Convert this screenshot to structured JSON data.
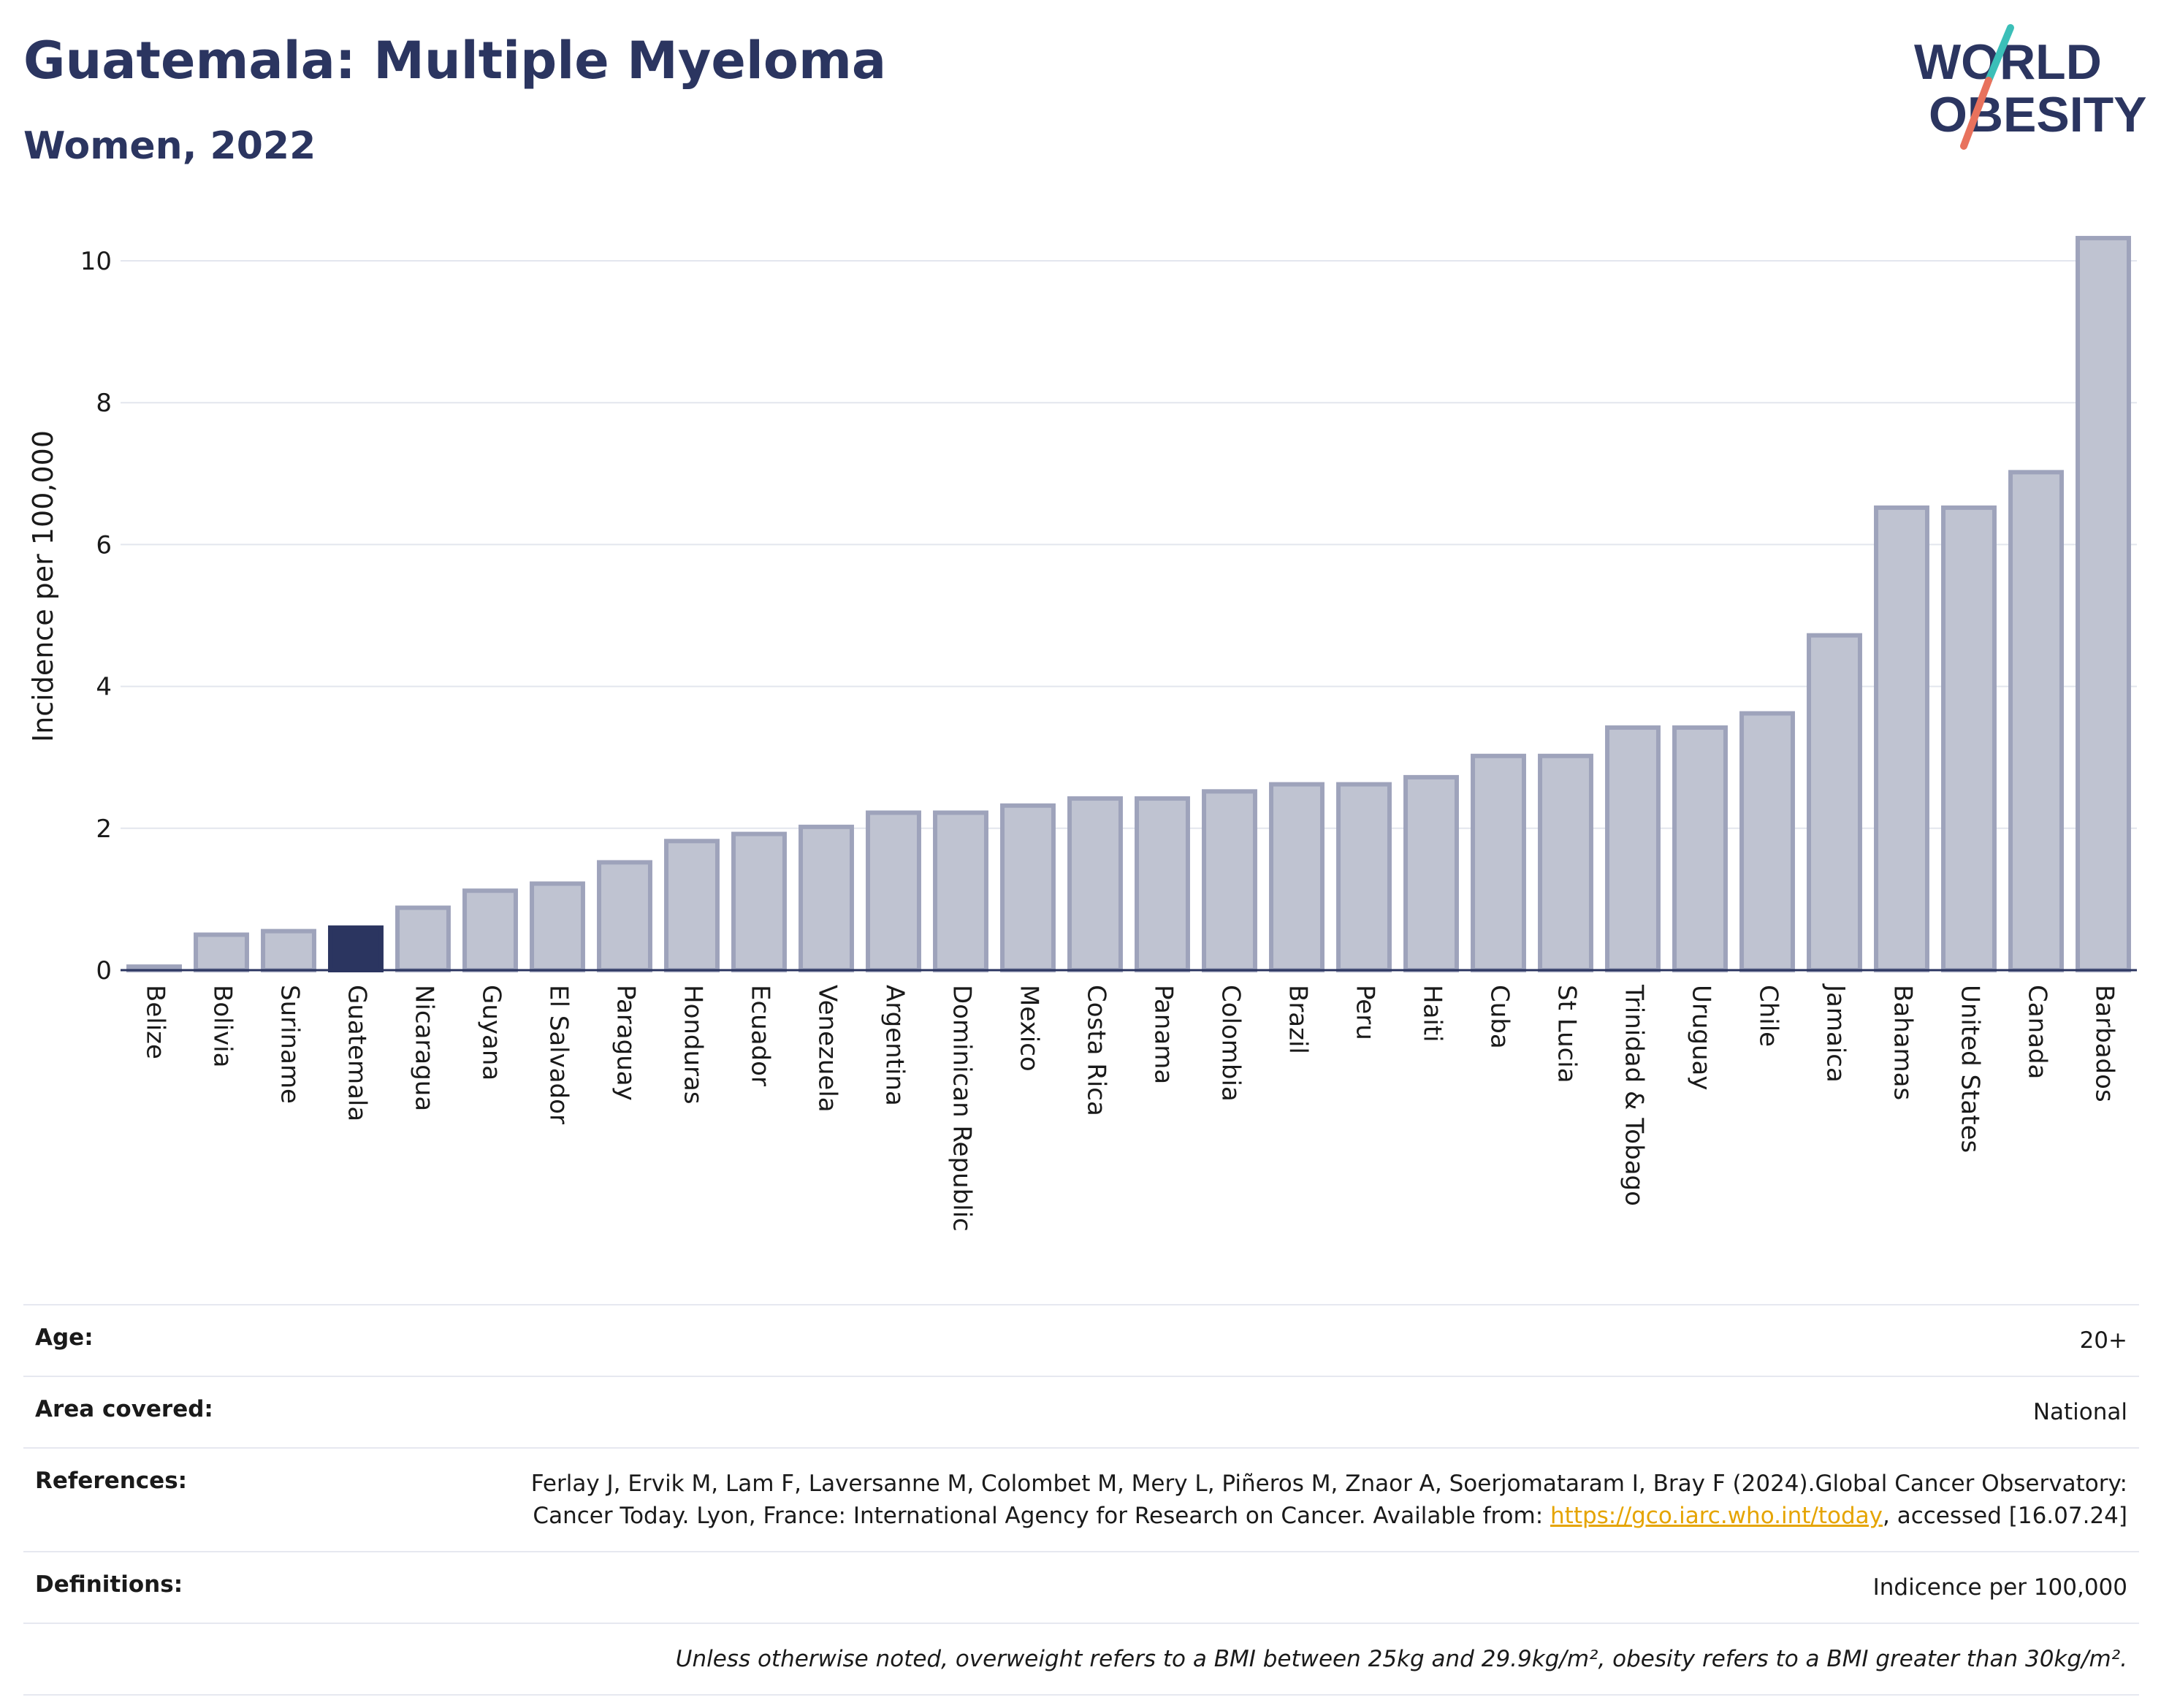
{
  "header": {
    "title": "Guatemala: Multiple Myeloma",
    "subtitle": "Women, 2022"
  },
  "logo": {
    "line1": "WORLD",
    "line2": "OBESITY"
  },
  "colors": {
    "bar": "#bfc3d1",
    "bar_stroke": "#9ea3bb",
    "highlight": "#2b3560",
    "grid": "#e3e6ee",
    "logo_teal": "#3bbfb8",
    "logo_coral": "#e8725d"
  },
  "chart_data": {
    "type": "bar",
    "ylabel": "Incidence per 100,000",
    "ylim": [
      0,
      10.5
    ],
    "yticks": [
      0,
      2,
      4,
      6,
      8,
      10
    ],
    "grid": true,
    "highlight": "Guatemala",
    "categories": [
      "Belize",
      "Bolivia",
      "Suriname",
      "Guatemala",
      "Nicaragua",
      "Guyana",
      "El Salvador",
      "Paraguay",
      "Honduras",
      "Ecuador",
      "Venezuela",
      "Argentina",
      "Dominican Republic",
      "Mexico",
      "Costa Rica",
      "Panama",
      "Colombia",
      "Brazil",
      "Peru",
      "Haiti",
      "Cuba",
      "St Lucia",
      "Trinidad & Tobago",
      "Uruguay",
      "Chile",
      "Jamaica",
      "Bahamas",
      "United States",
      "Canada",
      "Barbados"
    ],
    "values": [
      0.05,
      0.5,
      0.55,
      0.6,
      0.88,
      1.12,
      1.22,
      1.52,
      1.82,
      1.92,
      2.02,
      2.22,
      2.22,
      2.32,
      2.42,
      2.42,
      2.52,
      2.62,
      2.62,
      2.72,
      3.02,
      3.02,
      3.42,
      3.42,
      3.62,
      4.72,
      6.52,
      6.52,
      7.02,
      10.32
    ]
  },
  "info": {
    "age_label": "Age:",
    "age_value": "20+",
    "area_label": "Area covered:",
    "area_value": "National",
    "references_label": "References:",
    "references_text1": "Ferlay J, Ervik M, Lam F, Laversanne M, Colombet M, Mery L, Piñeros M, Znaor A, Soerjomataram I, Bray F (2024).Global Cancer Observatory: Cancer Today. Lyon, France: International Agency for Research on Cancer. Available from: ",
    "references_link": "https://gco.iarc.who.int/today",
    "references_text2": ", accessed [16.07.24]",
    "definitions_label": "Definitions:",
    "definitions_value": "Indicence per 100,000",
    "note": "Unless otherwise noted, overweight refers to a BMI between 25kg and 29.9kg/m², obesity refers to a BMI greater than 30kg/m²."
  }
}
